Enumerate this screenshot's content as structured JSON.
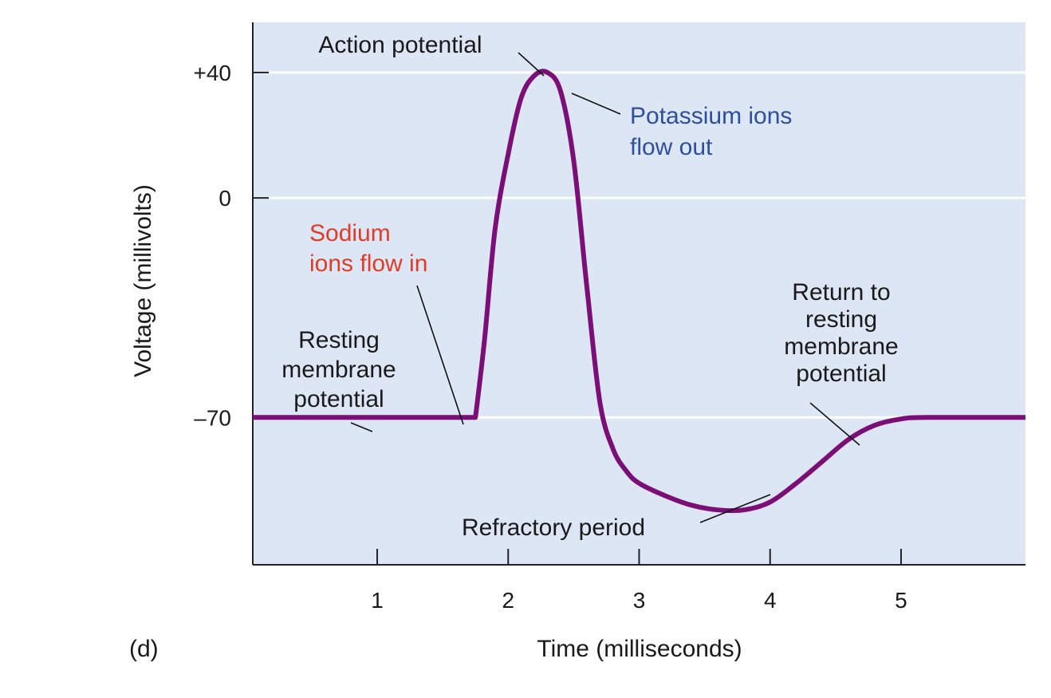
{
  "chart_data": {
    "type": "line",
    "panel_label": "(d)",
    "xlabel": "Time (milliseconds)",
    "ylabel": "Voltage (millivolts)",
    "xlim": [
      0.05,
      5.95
    ],
    "ylim": [
      -117,
      56
    ],
    "x_ticks": [
      1,
      2,
      3,
      4,
      5
    ],
    "y_ticks": [
      {
        "value": 40,
        "label": "+40"
      },
      {
        "value": 0,
        "label": "0"
      },
      {
        "value": -70,
        "label": "–70"
      }
    ],
    "grid": "horizontal",
    "colors": {
      "plot_background": "#dde6f4",
      "curve": "#7b0f77",
      "gridline": "#ffffff",
      "sodium_label": "#e03c28",
      "potassium_label": "#2e4f9e",
      "text": "#1a1a1a"
    },
    "series": [
      {
        "x": [
          0.05,
          1.75,
          1.82,
          1.9,
          2.0,
          2.1,
          2.2,
          2.3,
          2.4,
          2.5,
          2.6,
          2.7,
          2.8,
          2.9,
          3.0,
          3.2,
          3.4,
          3.6,
          3.8,
          4.0,
          4.2,
          4.4,
          4.6,
          4.8,
          5.0,
          5.2,
          5.95
        ],
        "y": [
          -70,
          -70,
          -45,
          -10,
          14,
          32,
          39,
          40,
          34,
          12,
          -28,
          -65,
          -80,
          -87,
          -91,
          -95,
          -98,
          -99.5,
          -99.5,
          -97,
          -91,
          -84,
          -77,
          -72.5,
          -70.5,
          -70,
          -70
        ]
      }
    ],
    "annotations": [
      {
        "id": "action_potential",
        "lines": [
          "Action potential"
        ]
      },
      {
        "id": "potassium",
        "lines": [
          "Potassium ions",
          "flow out"
        ]
      },
      {
        "id": "sodium",
        "lines": [
          "Sodium",
          "ions flow in"
        ]
      },
      {
        "id": "resting",
        "lines": [
          "Resting",
          "membrane",
          "potential"
        ]
      },
      {
        "id": "return",
        "lines": [
          "Return to",
          "resting",
          "membrane",
          "potential"
        ]
      },
      {
        "id": "refractory",
        "lines": [
          "Refractory period"
        ]
      }
    ]
  }
}
